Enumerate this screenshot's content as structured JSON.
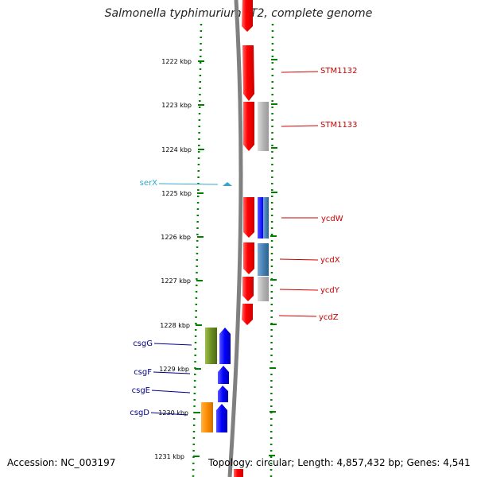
{
  "title": "Salmonella typhimurium LT2, complete genome",
  "accession": "Accession: NC_003197",
  "topology": "Topology: circular; Length: 4,857,432 bp; Genes: 4,541",
  "ticks": [
    {
      "label": "1222 kbp"
    },
    {
      "label": "1223 kbp"
    },
    {
      "label": "1224 kbp"
    },
    {
      "label": "1225 kbp"
    },
    {
      "label": "1226 kbp"
    },
    {
      "label": "1227 kbp"
    },
    {
      "label": "1228 kbp"
    },
    {
      "label": "1229 kbp"
    },
    {
      "label": "1230 kbp"
    },
    {
      "label": "1231 kbp"
    }
  ],
  "gene_labels_right": [
    {
      "name": "STM1132",
      "color": "#cc0000"
    },
    {
      "name": "STM1133",
      "color": "#cc0000"
    },
    {
      "name": "ycdW",
      "color": "#cc0000"
    },
    {
      "name": "ycdX",
      "color": "#cc0000"
    },
    {
      "name": "ycdY",
      "color": "#cc0000"
    },
    {
      "name": "ycdZ",
      "color": "#cc0000"
    }
  ],
  "gene_labels_left": [
    {
      "name": "serX",
      "color": "#33a6cc"
    },
    {
      "name": "csgG",
      "color": "#00008b"
    },
    {
      "name": "csgF",
      "color": "#00008b"
    },
    {
      "name": "csgE",
      "color": "#00008b"
    },
    {
      "name": "csgD",
      "color": "#00008b"
    }
  ],
  "colors": {
    "forward_gene": "#ff0000",
    "reverse_gene": "#0000ff",
    "grey_gene": "#b5b5b5",
    "steelblue_gene": "#4682b4",
    "green_gene": "#6b8e23",
    "orange_gene": "#ff8c00",
    "backbone": "#808080",
    "tick": "#008000",
    "trna": "#33a6cc"
  }
}
